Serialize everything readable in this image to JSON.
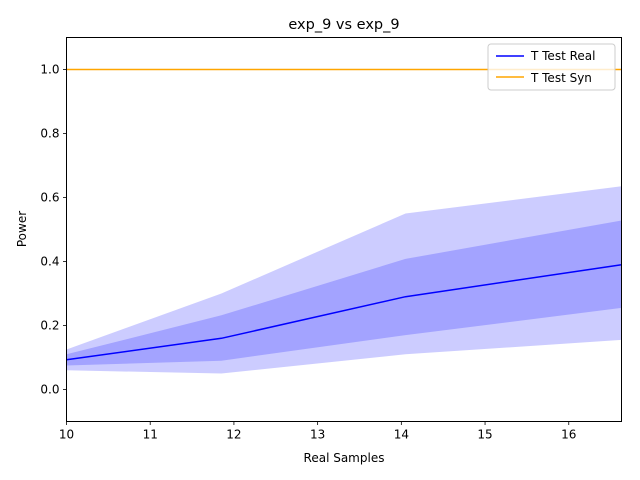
{
  "chart_data": {
    "type": "line",
    "title": "exp_9 vs exp_9",
    "xlabel": "Real Samples",
    "ylabel": "Power",
    "xlim": [
      10,
      16.63
    ],
    "ylim": [
      -0.1,
      1.1
    ],
    "xticks": [
      "10",
      "11",
      "12",
      "13",
      "14",
      "15",
      "16"
    ],
    "yticks": [
      "0.0",
      "0.2",
      "0.4",
      "0.6",
      "0.8",
      "1.0"
    ],
    "legend_position": "top-right",
    "series": [
      {
        "name": "T Test Real",
        "color": "#0000ff",
        "x": [
          10,
          11.85,
          14.05,
          16.63
        ],
        "y": [
          0.093,
          0.16,
          0.29,
          0.39
        ]
      },
      {
        "name": "T Test Syn",
        "color": "#ffa500",
        "x": [
          10,
          11.85,
          14.05,
          16.63
        ],
        "y": [
          1.0,
          1.0,
          1.0,
          1.0
        ]
      }
    ],
    "bands": [
      {
        "series": "T Test Real",
        "color": "#0000ff",
        "opacity": 0.2,
        "x": [
          10,
          11.85,
          14.05,
          16.63
        ],
        "low": [
          0.06,
          0.05,
          0.11,
          0.155
        ],
        "high": [
          0.125,
          0.3,
          0.55,
          0.635
        ]
      },
      {
        "series": "T Test Real",
        "color": "#0000ff",
        "opacity": 0.2,
        "x": [
          10,
          11.85,
          14.05,
          16.63
        ],
        "low": [
          0.075,
          0.09,
          0.17,
          0.255
        ],
        "high": [
          0.11,
          0.232,
          0.408,
          0.528
        ]
      }
    ]
  }
}
